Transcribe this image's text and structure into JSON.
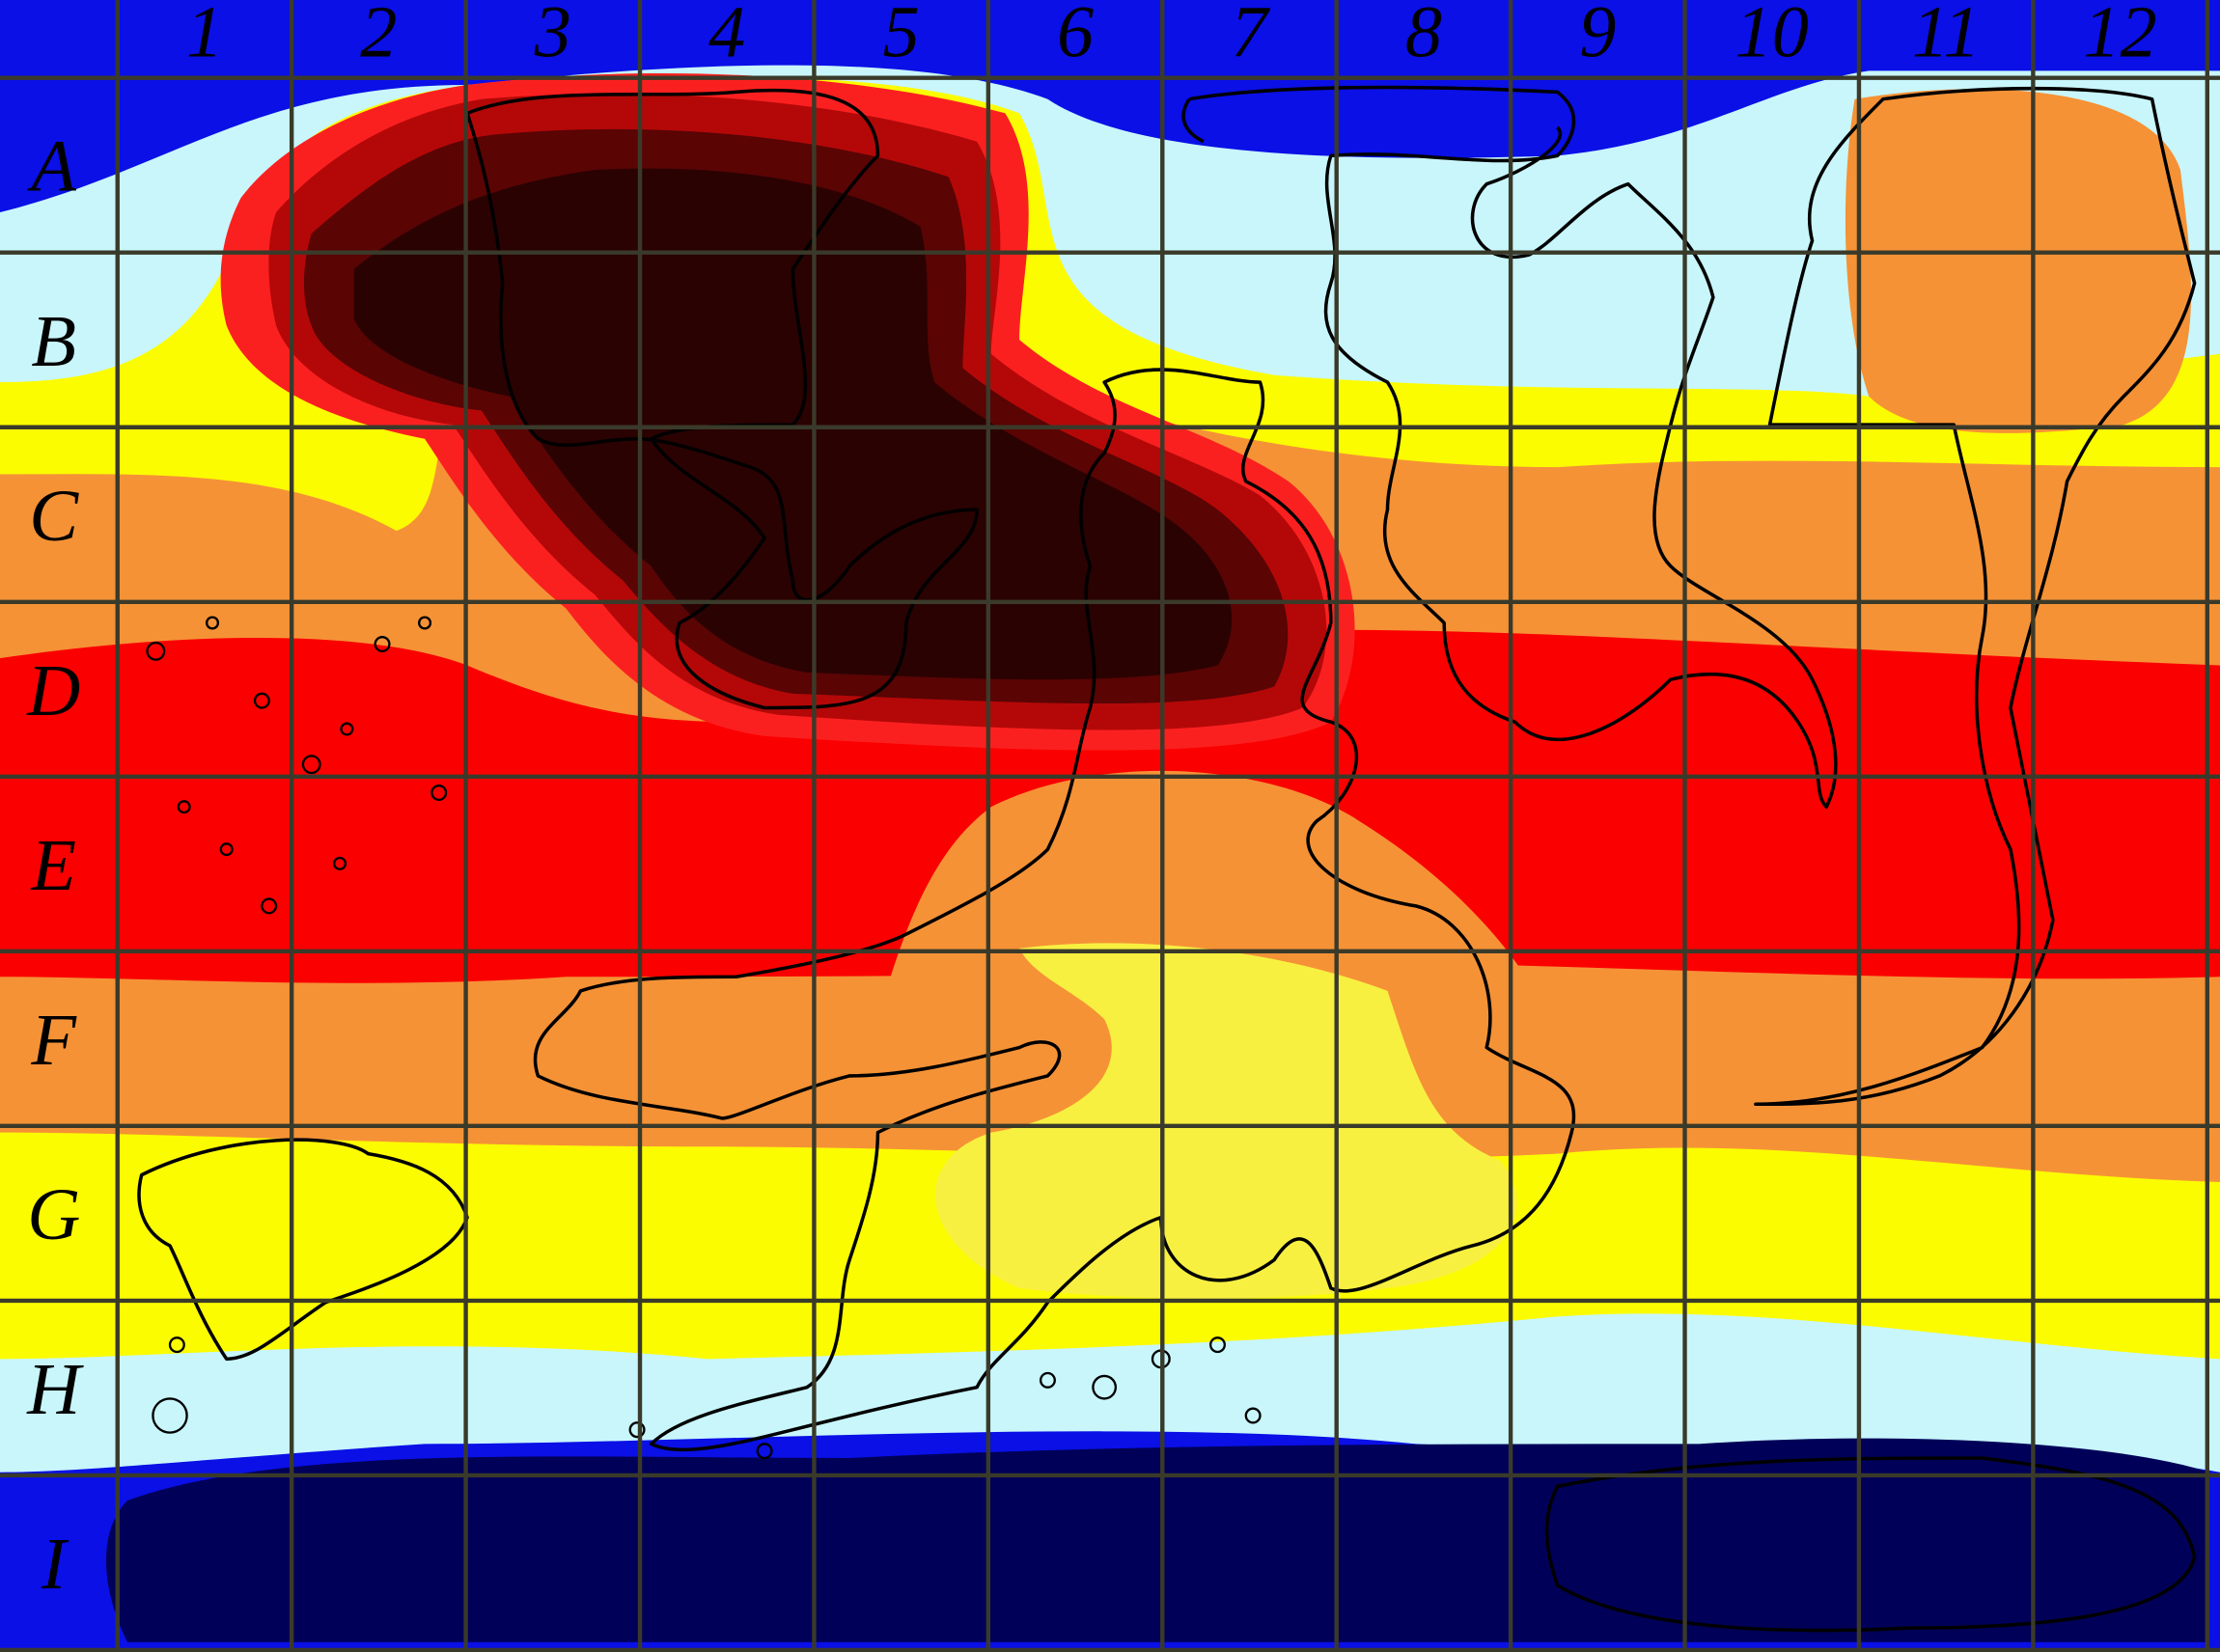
{
  "map": {
    "columns": [
      "1",
      "2",
      "3",
      "4",
      "5",
      "6",
      "7",
      "8",
      "9",
      "10",
      "11",
      "12"
    ],
    "rows": [
      "A",
      "B",
      "C",
      "D",
      "E",
      "F",
      "G",
      "H",
      "I"
    ]
  }
}
